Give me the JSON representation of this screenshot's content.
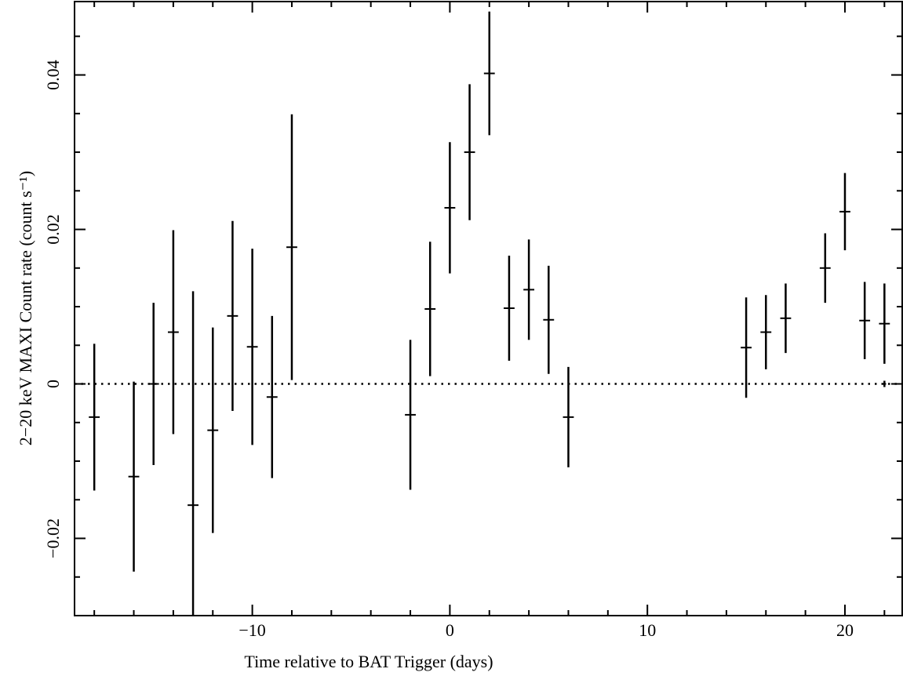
{
  "chart_data": {
    "type": "scatter",
    "title": "",
    "xlabel": "Time relative to BAT Trigger (days)",
    "ylabel": "2−20 keV MAXI Count rate (count s⁻¹)",
    "xlim": [
      -19.0,
      22.9
    ],
    "ylim": [
      -0.03,
      0.0495
    ],
    "x_ticks": [
      -10,
      0,
      10,
      20
    ],
    "x_tick_labels": [
      "−10",
      "0",
      "10",
      "20"
    ],
    "y_ticks": [
      -0.02,
      0,
      0.02,
      0.04
    ],
    "y_tick_labels": [
      "−0.02",
      "0",
      "0.02",
      "0.04"
    ],
    "grid": false,
    "reference_line": {
      "y": 0,
      "style": "dotted"
    },
    "series": [
      {
        "x_error": 0.5,
        "points": [
          {
            "x": -18,
            "y": -0.0043,
            "yerr": 0.0095
          },
          {
            "x": -16,
            "y": -0.012,
            "yerr": 0.0123
          },
          {
            "x": -15,
            "y": 0.0,
            "yerr": 0.0105
          },
          {
            "x": -14,
            "y": 0.0067,
            "yerr": 0.0132
          },
          {
            "x": -13,
            "y": -0.0157,
            "yerr": 0.0277
          },
          {
            "x": -12,
            "y": -0.006,
            "yerr": 0.0133
          },
          {
            "x": -11,
            "y": 0.0088,
            "yerr": 0.0123
          },
          {
            "x": -10,
            "y": 0.0048,
            "yerr": 0.0127
          },
          {
            "x": -9,
            "y": -0.0017,
            "yerr": 0.0105
          },
          {
            "x": -8,
            "y": 0.0177,
            "yerr": 0.0172
          },
          {
            "x": -2,
            "y": -0.004,
            "yerr": 0.0097
          },
          {
            "x": -1,
            "y": 0.0097,
            "yerr": 0.0087
          },
          {
            "x": 0,
            "y": 0.0228,
            "yerr": 0.0085
          },
          {
            "x": 1,
            "y": 0.03,
            "yerr": 0.0088
          },
          {
            "x": 2,
            "y": 0.0402,
            "yerr": 0.008
          },
          {
            "x": 3,
            "y": 0.0098,
            "yerr": 0.0068
          },
          {
            "x": 4,
            "y": 0.0122,
            "yerr": 0.0065
          },
          {
            "x": 5,
            "y": 0.0083,
            "yerr": 0.007
          },
          {
            "x": 6,
            "y": -0.0043,
            "yerr": 0.0065
          },
          {
            "x": 15,
            "y": 0.0047,
            "yerr": 0.0065
          },
          {
            "x": 16,
            "y": 0.0067,
            "yerr": 0.0048
          },
          {
            "x": 17,
            "y": 0.0085,
            "yerr": 0.0045
          },
          {
            "x": 19,
            "y": 0.015,
            "yerr": 0.0045
          },
          {
            "x": 20,
            "y": 0.0223,
            "yerr": 0.005
          },
          {
            "x": 21,
            "y": 0.0082,
            "yerr": 0.005
          },
          {
            "x": 22,
            "y": 0.0078,
            "yerr": 0.0052
          },
          {
            "x": 22,
            "y": 0.0,
            "yerr": 0.0,
            "x_error": 0.15
          }
        ]
      }
    ]
  }
}
